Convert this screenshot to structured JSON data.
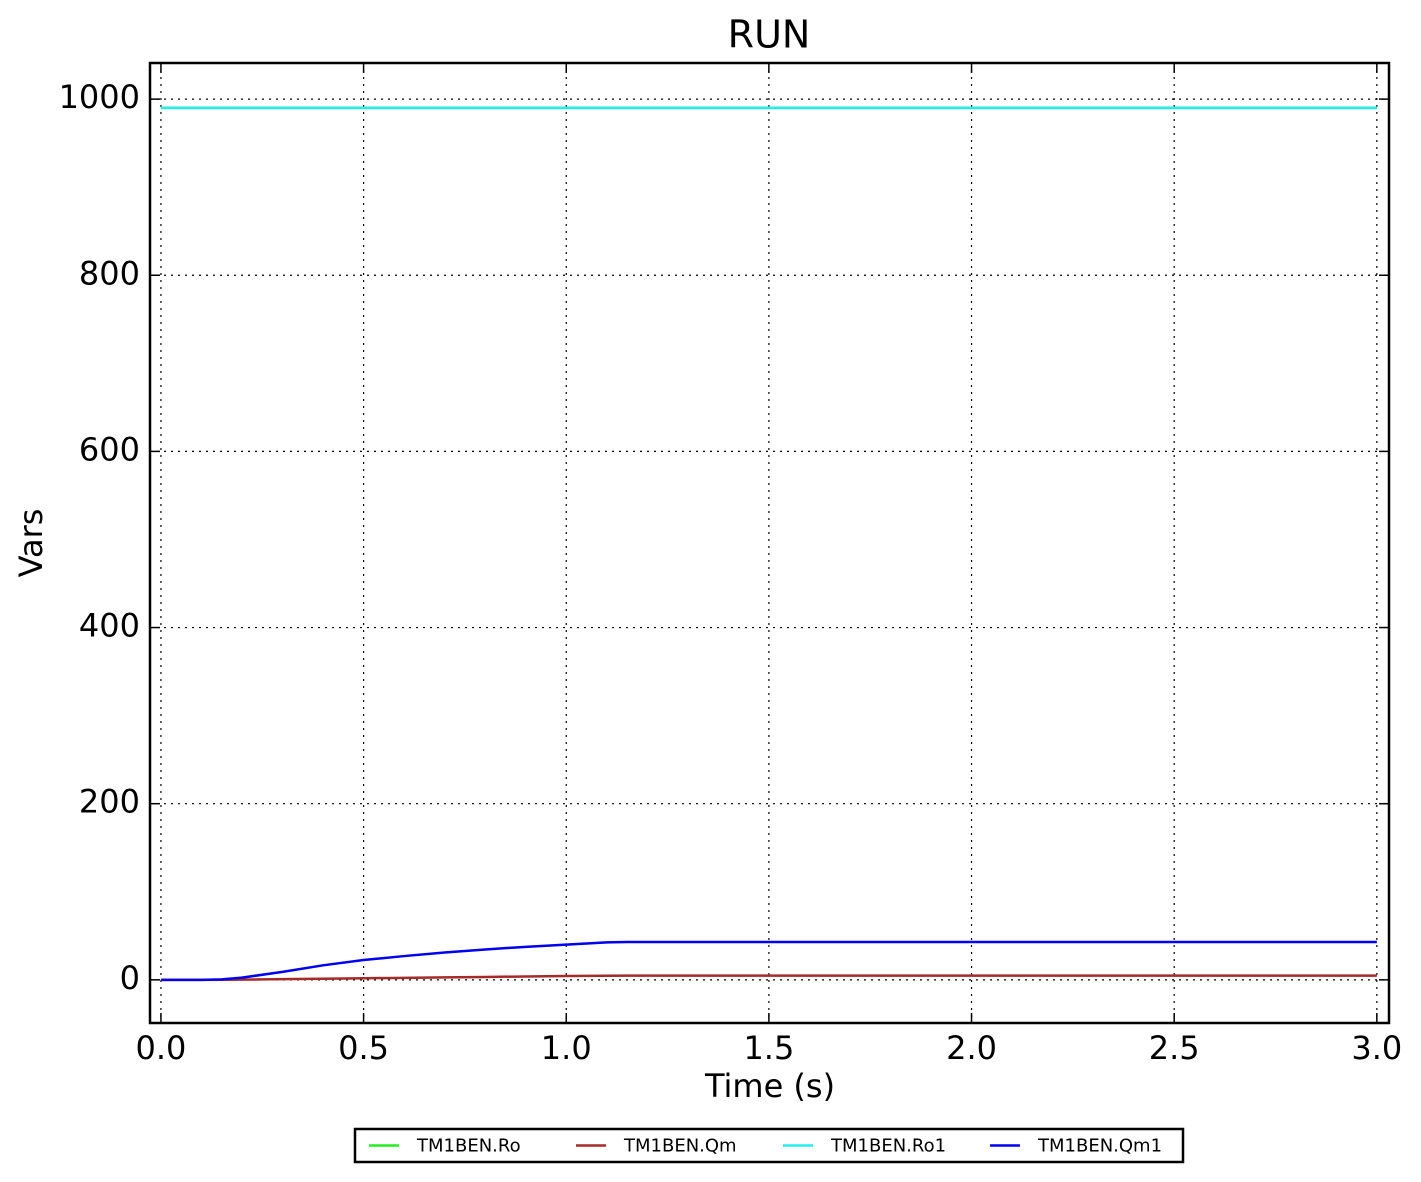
{
  "chart_data": {
    "type": "line",
    "title": "RUN",
    "x_label": "Time (s)",
    "y_label": "Vars",
    "x": [
      0,
      0.1,
      0.15,
      0.2,
      0.3,
      0.4,
      0.5,
      0.6,
      0.7,
      0.8,
      0.9,
      1.0,
      1.1,
      1.15,
      1.5,
      2.0,
      2.5,
      3.0
    ],
    "series": [
      {
        "name": "TM1BEN.Ro",
        "color": "#22ee22",
        "values": [
          990,
          990,
          990,
          990,
          990,
          990,
          990,
          990,
          990,
          990,
          990,
          990,
          990,
          990,
          990,
          990,
          990,
          990
        ]
      },
      {
        "name": "TM1BEN.Qm",
        "color": "#a52a2a",
        "values": [
          0,
          0,
          0.1,
          0.3,
          0.8,
          1.3,
          1.8,
          2.3,
          2.8,
          3.3,
          3.8,
          4.3,
          4.7,
          4.8,
          4.8,
          4.8,
          4.8,
          4.8
        ]
      },
      {
        "name": "TM1BEN.Ro1",
        "color": "#22eeee",
        "values": [
          990,
          990,
          990,
          990,
          990,
          990,
          990,
          990,
          990,
          990,
          990,
          990,
          990,
          990,
          990,
          990,
          990,
          990
        ]
      },
      {
        "name": "TM1BEN.Qm1",
        "color": "#0000ee",
        "values": [
          0,
          0,
          0.5,
          2.5,
          9,
          16.5,
          22.5,
          27,
          31,
          34.5,
          37.5,
          40,
          42.5,
          43,
          43,
          43,
          43,
          43
        ]
      }
    ],
    "xlim": [
      -0.027,
      3.03
    ],
    "xticks": [
      {
        "value": 0,
        "label": "0.0"
      },
      0.5,
      {
        "value": 1,
        "label": "1.0"
      },
      1.5,
      {
        "value": 2,
        "label": "2.0"
      },
      2.5,
      {
        "value": 3,
        "label": "3.0"
      }
    ],
    "ylim": [
      -49,
      1041
    ],
    "yticks": [
      0,
      200,
      400,
      600,
      800,
      1000
    ],
    "grid": true,
    "legend": "bottom"
  }
}
